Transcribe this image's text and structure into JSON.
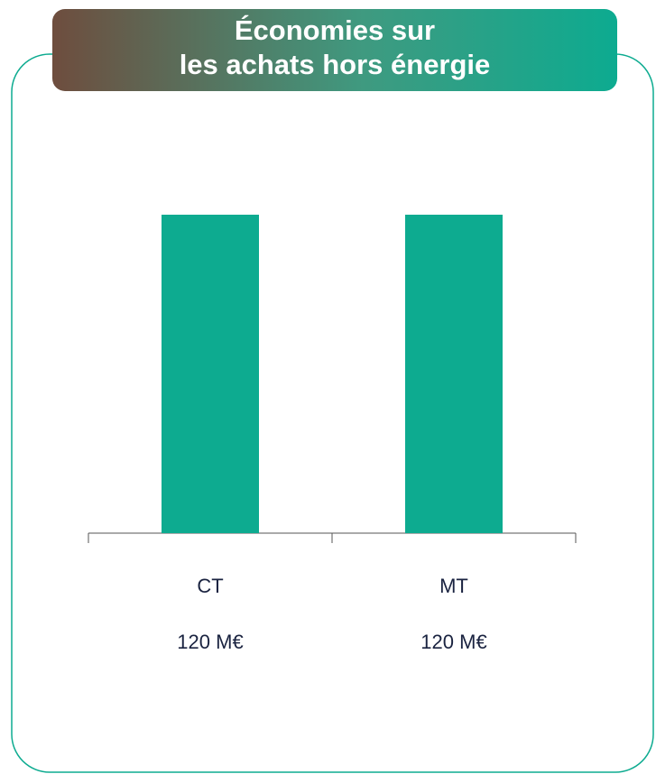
{
  "chart_data": {
    "type": "bar",
    "title": [
      "Économies sur",
      "les achats hors énergie"
    ],
    "categories": [
      "CT",
      "MT"
    ],
    "values": [
      120,
      120
    ],
    "value_labels": [
      "120 M€",
      "120 M€"
    ],
    "color": "#0dab90"
  }
}
